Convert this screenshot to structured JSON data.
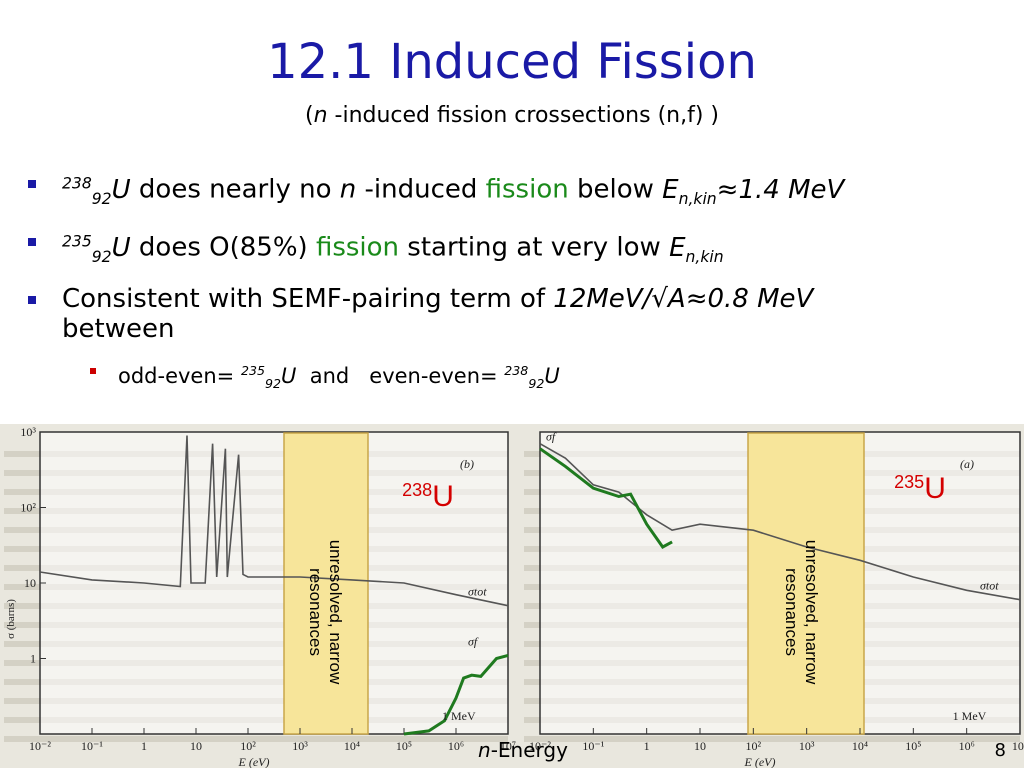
{
  "slide": {
    "title": "12.1 Induced Fission",
    "subtitle_open": "(",
    "subtitle_n": "n",
    "subtitle_rest": " -induced fission crossections (n,f) )",
    "page_number": "8"
  },
  "bullets": [
    {
      "sup": "238",
      "sub": "92",
      "el": "U",
      "t1": " does nearly no ",
      "n": "n",
      "t2": " -induced ",
      "hl": "fission",
      "t3": " below ",
      "E": "E",
      "Esub": "n,kin",
      "tail": "≈1.4 MeV"
    },
    {
      "sup": "235",
      "sub": "92",
      "el": "U",
      "t1": " does O(85%) ",
      "hl": "fission",
      "t2": " starting at very low ",
      "E": "E",
      "Esub": "n,kin"
    },
    {
      "t1": "Consistent with SEMF-pairing term of  ",
      "formula": "12MeV/√A≈0.8 MeV",
      "t2": "between"
    }
  ],
  "sub_bullet": {
    "t1": "odd-even= ",
    "sup1": "235",
    "sub1": "92",
    "el1": "U",
    "mid": "  and   even-even= ",
    "sup2": "238",
    "sub2": "92",
    "el2": "U"
  },
  "colors": {
    "title": "#1a1aa6",
    "highlight": "#1a8a1a",
    "bullet_l1": "#1a1aa6",
    "bullet_l2": "#cc0000",
    "resonance_band": "#f7e59a",
    "isotope_label": "#d40000",
    "sigma_f_curve": "#1f7a1f"
  },
  "x_axis_label": "-Energy",
  "x_axis_label_n": "n",
  "chart_data": [
    {
      "type": "line",
      "isotope_sup": "238",
      "isotope": "U",
      "panel_tag": "(b)",
      "band_label_1": "unresolved, narrow",
      "band_label_2": "resonances",
      "axis_xlabel": "E (eV)",
      "axis_ylabel": "σ (barns)",
      "xscale": "log",
      "yscale": "log",
      "xlim": [
        0.01,
        10000000
      ],
      "ylim": [
        0.1,
        1000
      ],
      "xtick_labels": [
        "10⁻²",
        "10⁻¹",
        "1",
        "10",
        "10²",
        "10³",
        "10⁴",
        "10⁵",
        "10⁶",
        "10⁷"
      ],
      "ytick_labels": [
        "1",
        "10",
        "10²",
        "10³"
      ],
      "resonance_band": [
        1000,
        20000
      ],
      "series": [
        {
          "name": "σtot",
          "x": [
            0.01,
            0.1,
            1,
            5,
            6.7,
            8,
            15,
            20.9,
            25,
            36.7,
            40,
            66,
            80,
            100,
            300,
            1000,
            10000,
            100000,
            1000000,
            10000000
          ],
          "y": [
            14,
            11,
            10,
            9,
            900,
            10,
            10,
            700,
            12,
            600,
            12,
            500,
            13,
            12,
            12,
            12,
            11,
            10,
            7,
            5
          ]
        },
        {
          "name": "σf",
          "x": [
            100000,
            300000,
            600000,
            1000000,
            1400000,
            2000000,
            3000000,
            6000000,
            10000000
          ],
          "y": [
            0.1,
            0.11,
            0.15,
            0.3,
            0.55,
            0.6,
            0.58,
            1.0,
            1.1
          ]
        }
      ],
      "annotations": [
        "1 MeV"
      ]
    },
    {
      "type": "line",
      "isotope_sup": "235",
      "isotope": "U",
      "panel_tag": "(a)",
      "band_label_1": "unresolved, narrow",
      "band_label_2": "resonances",
      "axis_xlabel": "E (eV)",
      "xscale": "log",
      "yscale": "log",
      "xlim": [
        0.01,
        10000000
      ],
      "ylim": [
        0.1,
        1000
      ],
      "xtick_labels": [
        "10⁻²",
        "10⁻¹",
        "1",
        "10",
        "10²",
        "10³",
        "10⁴",
        "10⁵",
        "10⁶",
        "10⁷"
      ],
      "resonance_band": [
        1000,
        20000
      ],
      "series": [
        {
          "name": "σtot",
          "x": [
            0.01,
            0.03,
            0.1,
            0.3,
            1,
            3,
            10,
            100,
            1000,
            10000,
            100000,
            1000000,
            10000000
          ],
          "y": [
            700,
            450,
            200,
            160,
            80,
            50,
            60,
            50,
            30,
            20,
            12,
            8,
            6
          ]
        },
        {
          "name": "σf",
          "x": [
            0.01,
            0.03,
            0.1,
            0.3,
            0.5,
            1,
            2,
            3
          ],
          "y": [
            600,
            350,
            180,
            140,
            150,
            60,
            30,
            35
          ]
        }
      ],
      "annotations": [
        "1 MeV"
      ]
    }
  ]
}
